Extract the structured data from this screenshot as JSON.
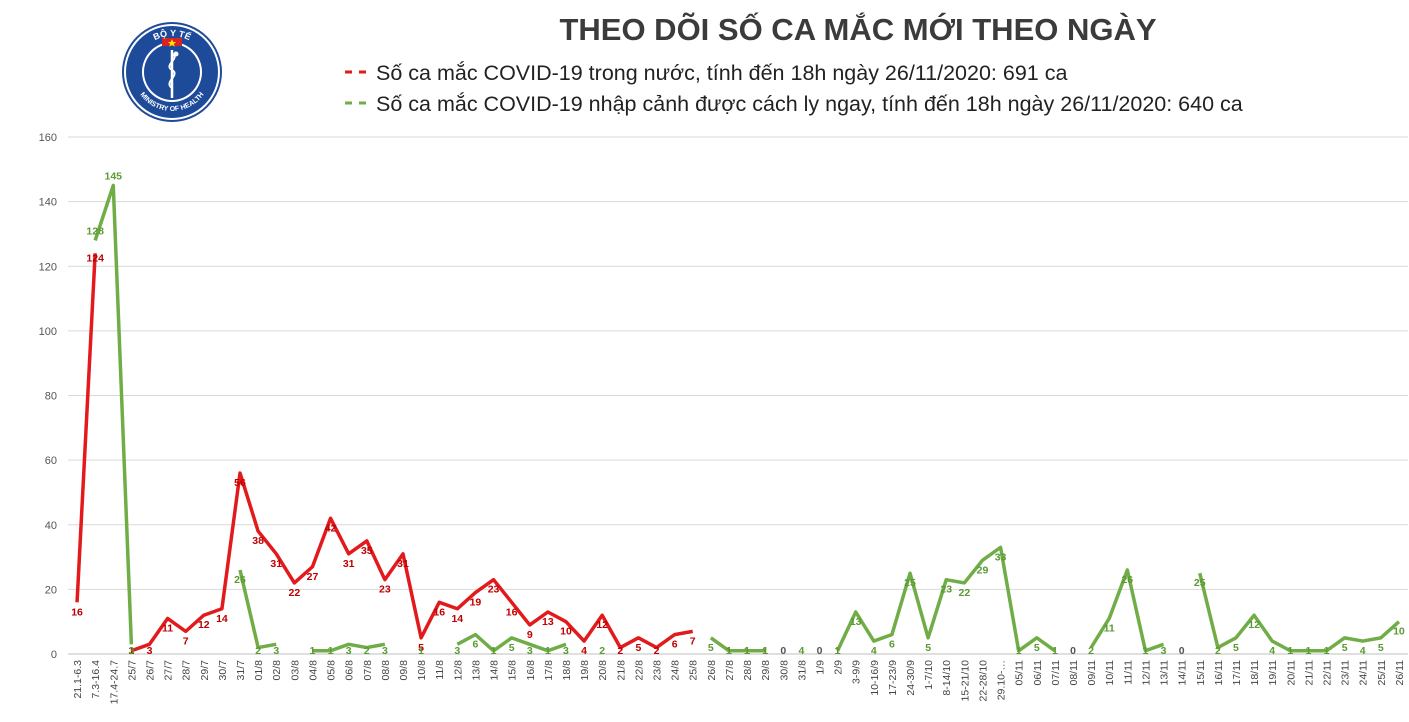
{
  "logo": {
    "top_text": "BỘ Y TẾ",
    "bottom_text": "MINISTRY OF HEALTH"
  },
  "chart_data": {
    "type": "line",
    "title": "THEO DÕI SỐ CA MẮC MỚI THEO NGÀY",
    "ylim": [
      0,
      160
    ],
    "yticks": [
      0,
      20,
      40,
      60,
      80,
      100,
      120,
      140,
      160
    ],
    "grid": "horizontal",
    "legend_position": "top",
    "categories": [
      "21.1-6.3",
      "7.3-16.4",
      "17.4-24.7",
      "25/7",
      "26/7",
      "27/7",
      "28/7",
      "29/7",
      "30/7",
      "31/7",
      "01/8",
      "02/8",
      "03/8",
      "04/8",
      "05/8",
      "06/8",
      "07/8",
      "08/8",
      "09/8",
      "10/8",
      "11/8",
      "12/8",
      "13/8",
      "14/8",
      "15/8",
      "16/8",
      "17/8",
      "18/8",
      "19/8",
      "20/8",
      "21/8",
      "22/8",
      "23/8",
      "24/8",
      "25/8",
      "26/8",
      "27/8",
      "28/8",
      "29/8",
      "30/8",
      "31/8",
      "1/9",
      "2/9",
      "3-9/9",
      "10-16/9",
      "17-23/9",
      "24-30/9",
      "1-7/10",
      "8-14/10",
      "15-21/10",
      "22-28/10",
      "29.10-…",
      "05/11",
      "06/11",
      "07/11",
      "08/11",
      "09/11",
      "10/11",
      "11/11",
      "12/11",
      "13/11",
      "14/11",
      "15/11",
      "16/11",
      "17/11",
      "18/11",
      "19/11",
      "20/11",
      "21/11",
      "22/11",
      "23/11",
      "24/11",
      "25/11",
      "26/11"
    ],
    "series": [
      {
        "name": "Số ca mắc COVID-19 trong nước, tính đến 18h ngày 26/11/2020: 691 ca",
        "color": "#e31a1c",
        "values": [
          16,
          124,
          null,
          1,
          3,
          11,
          7,
          12,
          14,
          56,
          38,
          31,
          22,
          27,
          42,
          31,
          35,
          23,
          31,
          5,
          16,
          14,
          19,
          23,
          16,
          9,
          13,
          10,
          4,
          12,
          2,
          5,
          2,
          6,
          7,
          null,
          1,
          1,
          1,
          null,
          null,
          null,
          1,
          null,
          null,
          null,
          null,
          null,
          null,
          null,
          null,
          null,
          null,
          null,
          null,
          null,
          null,
          null,
          null,
          null,
          null,
          null,
          null,
          null,
          null,
          null,
          null,
          null,
          null,
          null,
          null,
          null,
          null,
          null
        ]
      },
      {
        "name": "Số ca mắc COVID-19 nhập cảnh được cách ly ngay, tính đến 18h ngày 26/11/2020: 640 ca",
        "color": "#70ad47",
        "values": [
          null,
          128,
          145,
          3,
          null,
          null,
          null,
          null,
          null,
          26,
          2,
          3,
          null,
          1,
          1,
          3,
          2,
          3,
          null,
          1,
          null,
          3,
          6,
          1,
          5,
          3,
          1,
          3,
          null,
          2,
          null,
          null,
          null,
          null,
          null,
          5,
          1,
          1,
          1,
          0,
          4,
          0,
          1,
          13,
          4,
          6,
          25,
          5,
          23,
          22,
          29,
          33,
          1,
          5,
          1,
          0,
          2,
          11,
          26,
          1,
          3,
          0,
          25,
          2,
          5,
          12,
          4,
          1,
          1,
          1,
          5,
          4,
          5,
          10
        ]
      }
    ]
  }
}
